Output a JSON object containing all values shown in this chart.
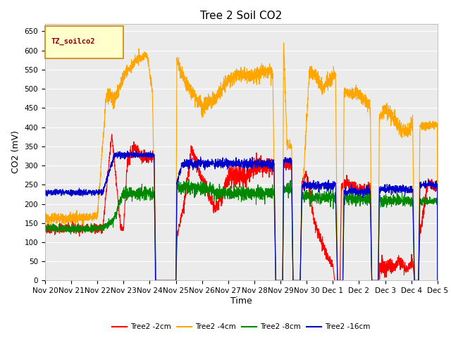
{
  "title": "Tree 2 Soil CO2",
  "xlabel": "Time",
  "ylabel": "CO2 (mV)",
  "ylim": [
    0,
    670
  ],
  "yticks": [
    0,
    50,
    100,
    150,
    200,
    250,
    300,
    350,
    400,
    450,
    500,
    550,
    600,
    650
  ],
  "legend_label": "TZ_soilco2",
  "series_labels": [
    "Tree2 -2cm",
    "Tree2 -4cm",
    "Tree2 -8cm",
    "Tree2 -16cm"
  ],
  "series_colors": [
    "#ff0000",
    "#ffa500",
    "#008800",
    "#0000cc"
  ],
  "plot_bg_color": "#ebebeb",
  "xtick_labels": [
    "Nov 20",
    "Nov 21",
    "Nov 22",
    "Nov 23",
    "Nov 24",
    "Nov 25",
    "Nov 26",
    "Nov 27",
    "Nov 28",
    "Nov 29",
    "Nov 30",
    "Dec 1",
    "Dec 2",
    "Dec 3",
    "Dec 4",
    "Dec 5"
  ],
  "title_fontsize": 11,
  "axis_label_fontsize": 9,
  "tick_fontsize": 7.5
}
